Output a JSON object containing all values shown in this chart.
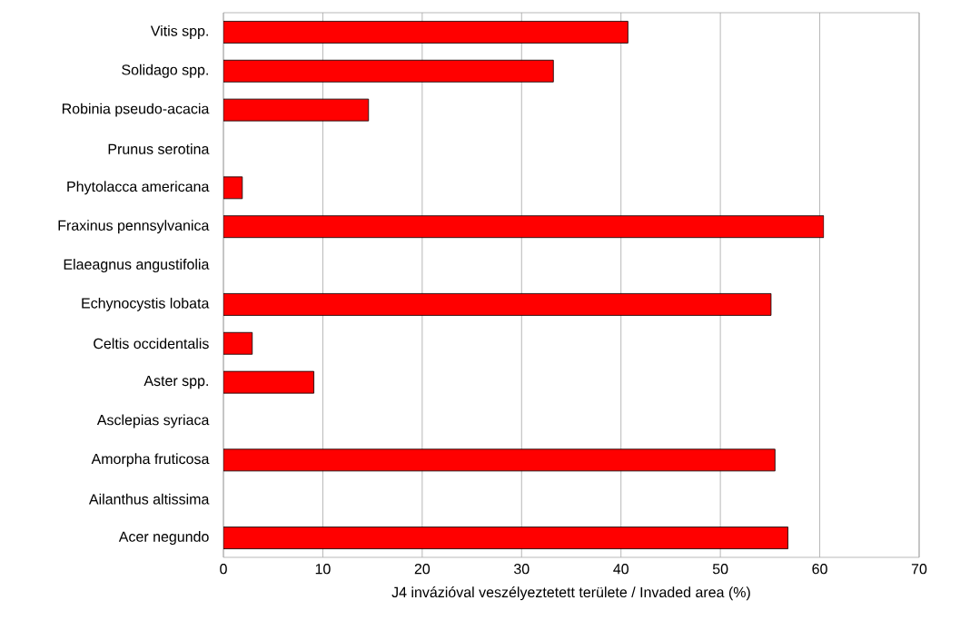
{
  "chart_data": {
    "type": "bar",
    "orientation": "horizontal",
    "categories": [
      "Vitis spp.",
      "Solidago spp.",
      "Robinia pseudo-acacia",
      "Prunus serotina",
      "Phytolacca americana",
      "Fraxinus pennsylvanica",
      "Elaeagnus angustifolia",
      "Echynocystis lobata",
      "Celtis occidentalis",
      "Aster spp.",
      "Asclepias syriaca",
      "Amorpha fruticosa",
      "Ailanthus altissima",
      "Acer negundo"
    ],
    "values": [
      40.7,
      33.2,
      14.6,
      null,
      1.9,
      60.4,
      null,
      55.1,
      2.9,
      9.1,
      null,
      55.5,
      null,
      56.8
    ],
    "color": "#ff0000",
    "xlabel": "J4 invázióval veszélyeztetett területe / Invaded area  (%)",
    "xlim": [
      0,
      70
    ],
    "xticks": [
      0,
      10,
      20,
      30,
      40,
      50,
      60,
      70
    ],
    "grid": "x"
  }
}
